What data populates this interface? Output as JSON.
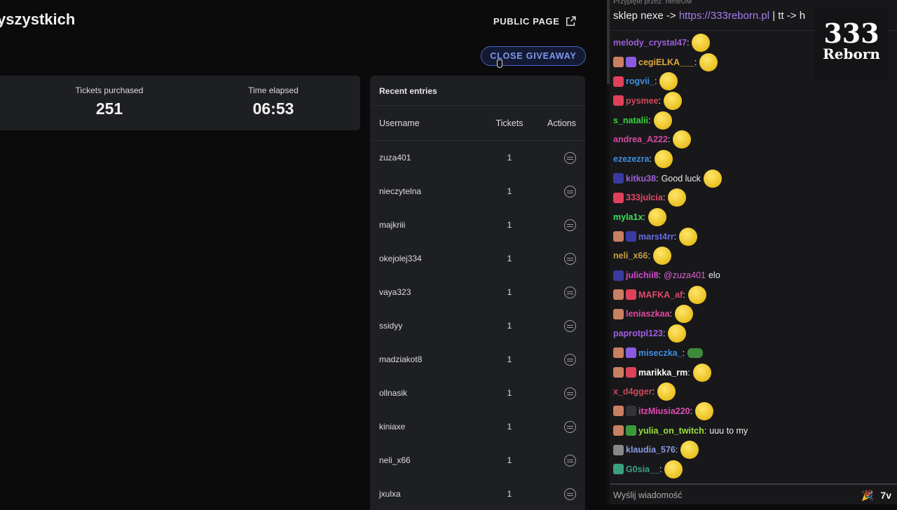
{
  "header": {
    "title": "yszystkich",
    "public_page": "PUBLIC PAGE",
    "close_giveaway": "CLOSE GIVEAWAY"
  },
  "stats": {
    "tickets_label": "Tickets purchased",
    "tickets_value": "251",
    "time_label": "Time elapsed",
    "time_value": "06:53"
  },
  "entries": {
    "title": "Recent entries",
    "columns": [
      "Username",
      "Tickets",
      "Actions"
    ],
    "rows": [
      {
        "user": "zuza401",
        "tickets": "1"
      },
      {
        "user": "nieczytelna",
        "tickets": "1"
      },
      {
        "user": "majkriii",
        "tickets": "1"
      },
      {
        "user": "okejolej334",
        "tickets": "1"
      },
      {
        "user": "vaya323",
        "tickets": "1"
      },
      {
        "user": "ssidyy",
        "tickets": "1"
      },
      {
        "user": "madziakot8",
        "tickets": "1"
      },
      {
        "user": "ollnasik",
        "tickets": "1"
      },
      {
        "user": "kiniaxe",
        "tickets": "1"
      },
      {
        "user": "neli_x66",
        "tickets": "1"
      },
      {
        "user": "jxulxa",
        "tickets": "1"
      }
    ]
  },
  "chat": {
    "pinned_by": "Przypięte przez: nerieUM",
    "pinned_prefix": "sklep nexe -> ",
    "pinned_link": "https://333reborn.pl",
    "pinned_suffix": " | tt -> h",
    "logo": {
      "line1": "333",
      "line2": "Reborn"
    },
    "input_placeholder": "Wyślij wiadomość",
    "messages": [
      {
        "badges": [],
        "name": "melody_crystal47",
        "color": "#9b5fd6",
        "emote": "salute"
      },
      {
        "badges": [
          "#c98060",
          "#8a5ae0"
        ],
        "name": "cegiELKA___",
        "color": "#d8a93e",
        "emote": "salute"
      },
      {
        "badges": [
          "#e0405a"
        ],
        "name": "rogvii_",
        "color": "#3d8fe0",
        "emote": "salute"
      },
      {
        "badges": [
          "#e0405a"
        ],
        "name": "pysmee",
        "color": "#d2455a",
        "emote": "salute"
      },
      {
        "badges": [],
        "name": "s_natalii",
        "color": "#3ad43a",
        "emote": "salute"
      },
      {
        "badges": [],
        "name": "andrea_A222",
        "color": "#d24aa0",
        "emote": "salute"
      },
      {
        "badges": [],
        "name": "ezezezra",
        "color": "#3d8fe0",
        "emote": "salute"
      },
      {
        "badges": [
          "#3a3aa0"
        ],
        "name": "kitku38",
        "color": "#9b5fd6",
        "text": "Good luck",
        "emote": "salute"
      },
      {
        "badges": [
          "#e0405a"
        ],
        "name": "333julcia",
        "color": "#e04a6a",
        "emote": "salute"
      },
      {
        "badges": [],
        "name": "myla1x",
        "color": "#3ae05a",
        "emote": "salute"
      },
      {
        "badges": [
          "#c98060",
          "#3a3aa0"
        ],
        "name": "marst4rr",
        "color": "#6a6ae8",
        "emote": "salute"
      },
      {
        "badges": [],
        "name": "neli_x66",
        "color": "#c8a040",
        "emote": "salute"
      },
      {
        "badges": [
          "#3a3aa0"
        ],
        "name": "julichii8",
        "color": "#d24ad0",
        "mention": "@zuza401",
        "text": "elo"
      },
      {
        "badges": [
          "#c98060",
          "#e0405a"
        ],
        "name": "MAFKA_af",
        "color": "#e04a6a",
        "emote": "salute"
      },
      {
        "badges": [
          "#c98060"
        ],
        "name": "leniaszkaa",
        "color": "#e04aa0",
        "emote": "salute"
      },
      {
        "badges": [],
        "name": "paprotpl123",
        "color": "#a060e0",
        "emote": "salute"
      },
      {
        "badges": [
          "#c98060",
          "#8a5ae0"
        ],
        "name": "miseczka_",
        "color": "#3d8fe0",
        "emote": "frog"
      },
      {
        "badges": [
          "#c98060",
          "#e0405a"
        ],
        "name": "marikka_rm",
        "color": "#ffffff",
        "emote": "salute"
      },
      {
        "badges": [],
        "name": "x_d4gger",
        "color": "#c84a5a",
        "emote": "salute"
      },
      {
        "badges": [
          "#c98060",
          "#333338"
        ],
        "name": "itzMiusia220",
        "color": "#e04ab0",
        "emote": "salute"
      },
      {
        "badges": [
          "#c98060",
          "#3a9a3a"
        ],
        "name": "yulia_on_twitch",
        "color": "#9ae03a",
        "text": "uuu to my"
      },
      {
        "badges": [
          "#888888"
        ],
        "name": "klaudia_576",
        "color": "#8a9ae0",
        "emote": "salute"
      },
      {
        "badges": [
          "#3aa080"
        ],
        "name": "G0sia__",
        "color": "#3aa080",
        "emote": "salute"
      }
    ]
  },
  "colors": {
    "accent": "#4a62c8",
    "panel": "#1e1f22",
    "chat_bg": "#18181b"
  }
}
